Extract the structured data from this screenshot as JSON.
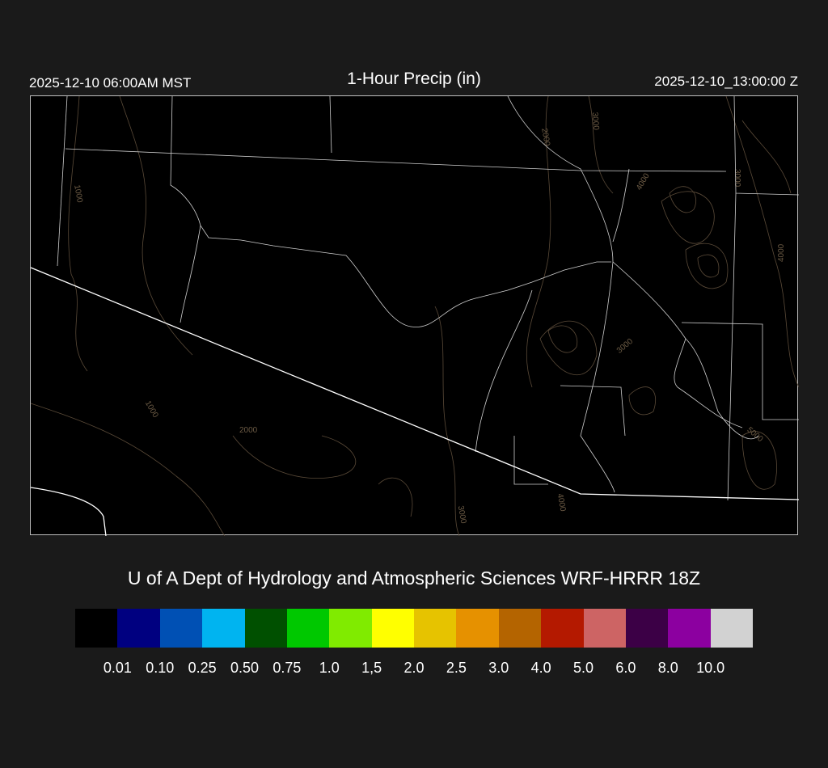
{
  "header": {
    "local_time": "2025-12-10 06:00AM MST",
    "title": "1-Hour Precip (in)",
    "valid_time": "2025-12-10_13:00:00 Z"
  },
  "map": {
    "contour_labels": [
      "1000",
      "2000",
      "3000",
      "4000",
      "3000",
      "4000",
      "3000",
      "1000",
      "2000",
      "5000",
      "3000",
      "4000"
    ],
    "contour_color": "#6b5a44",
    "boundary_color": "#ffffff"
  },
  "credit": "U of A Dept of Hydrology and Atmospheric Sciences WRF-HRRR 18Z",
  "legend": {
    "colors": [
      "#000000",
      "#000080",
      "#0050b4",
      "#00b4f0",
      "#005000",
      "#00c800",
      "#80eb00",
      "#ffff00",
      "#e6c300",
      "#e69100",
      "#b46400",
      "#b41900",
      "#cd6464",
      "#3c0046",
      "#8c00a0",
      "#d2d2d2"
    ],
    "labels": [
      "0.01",
      "0.10",
      "0.25",
      "0.50",
      "0.75",
      "1.0",
      "1,5",
      "2.0",
      "2.5",
      "3.0",
      "4.0",
      "5.0",
      "6.0",
      "8.0",
      "10.0"
    ]
  }
}
